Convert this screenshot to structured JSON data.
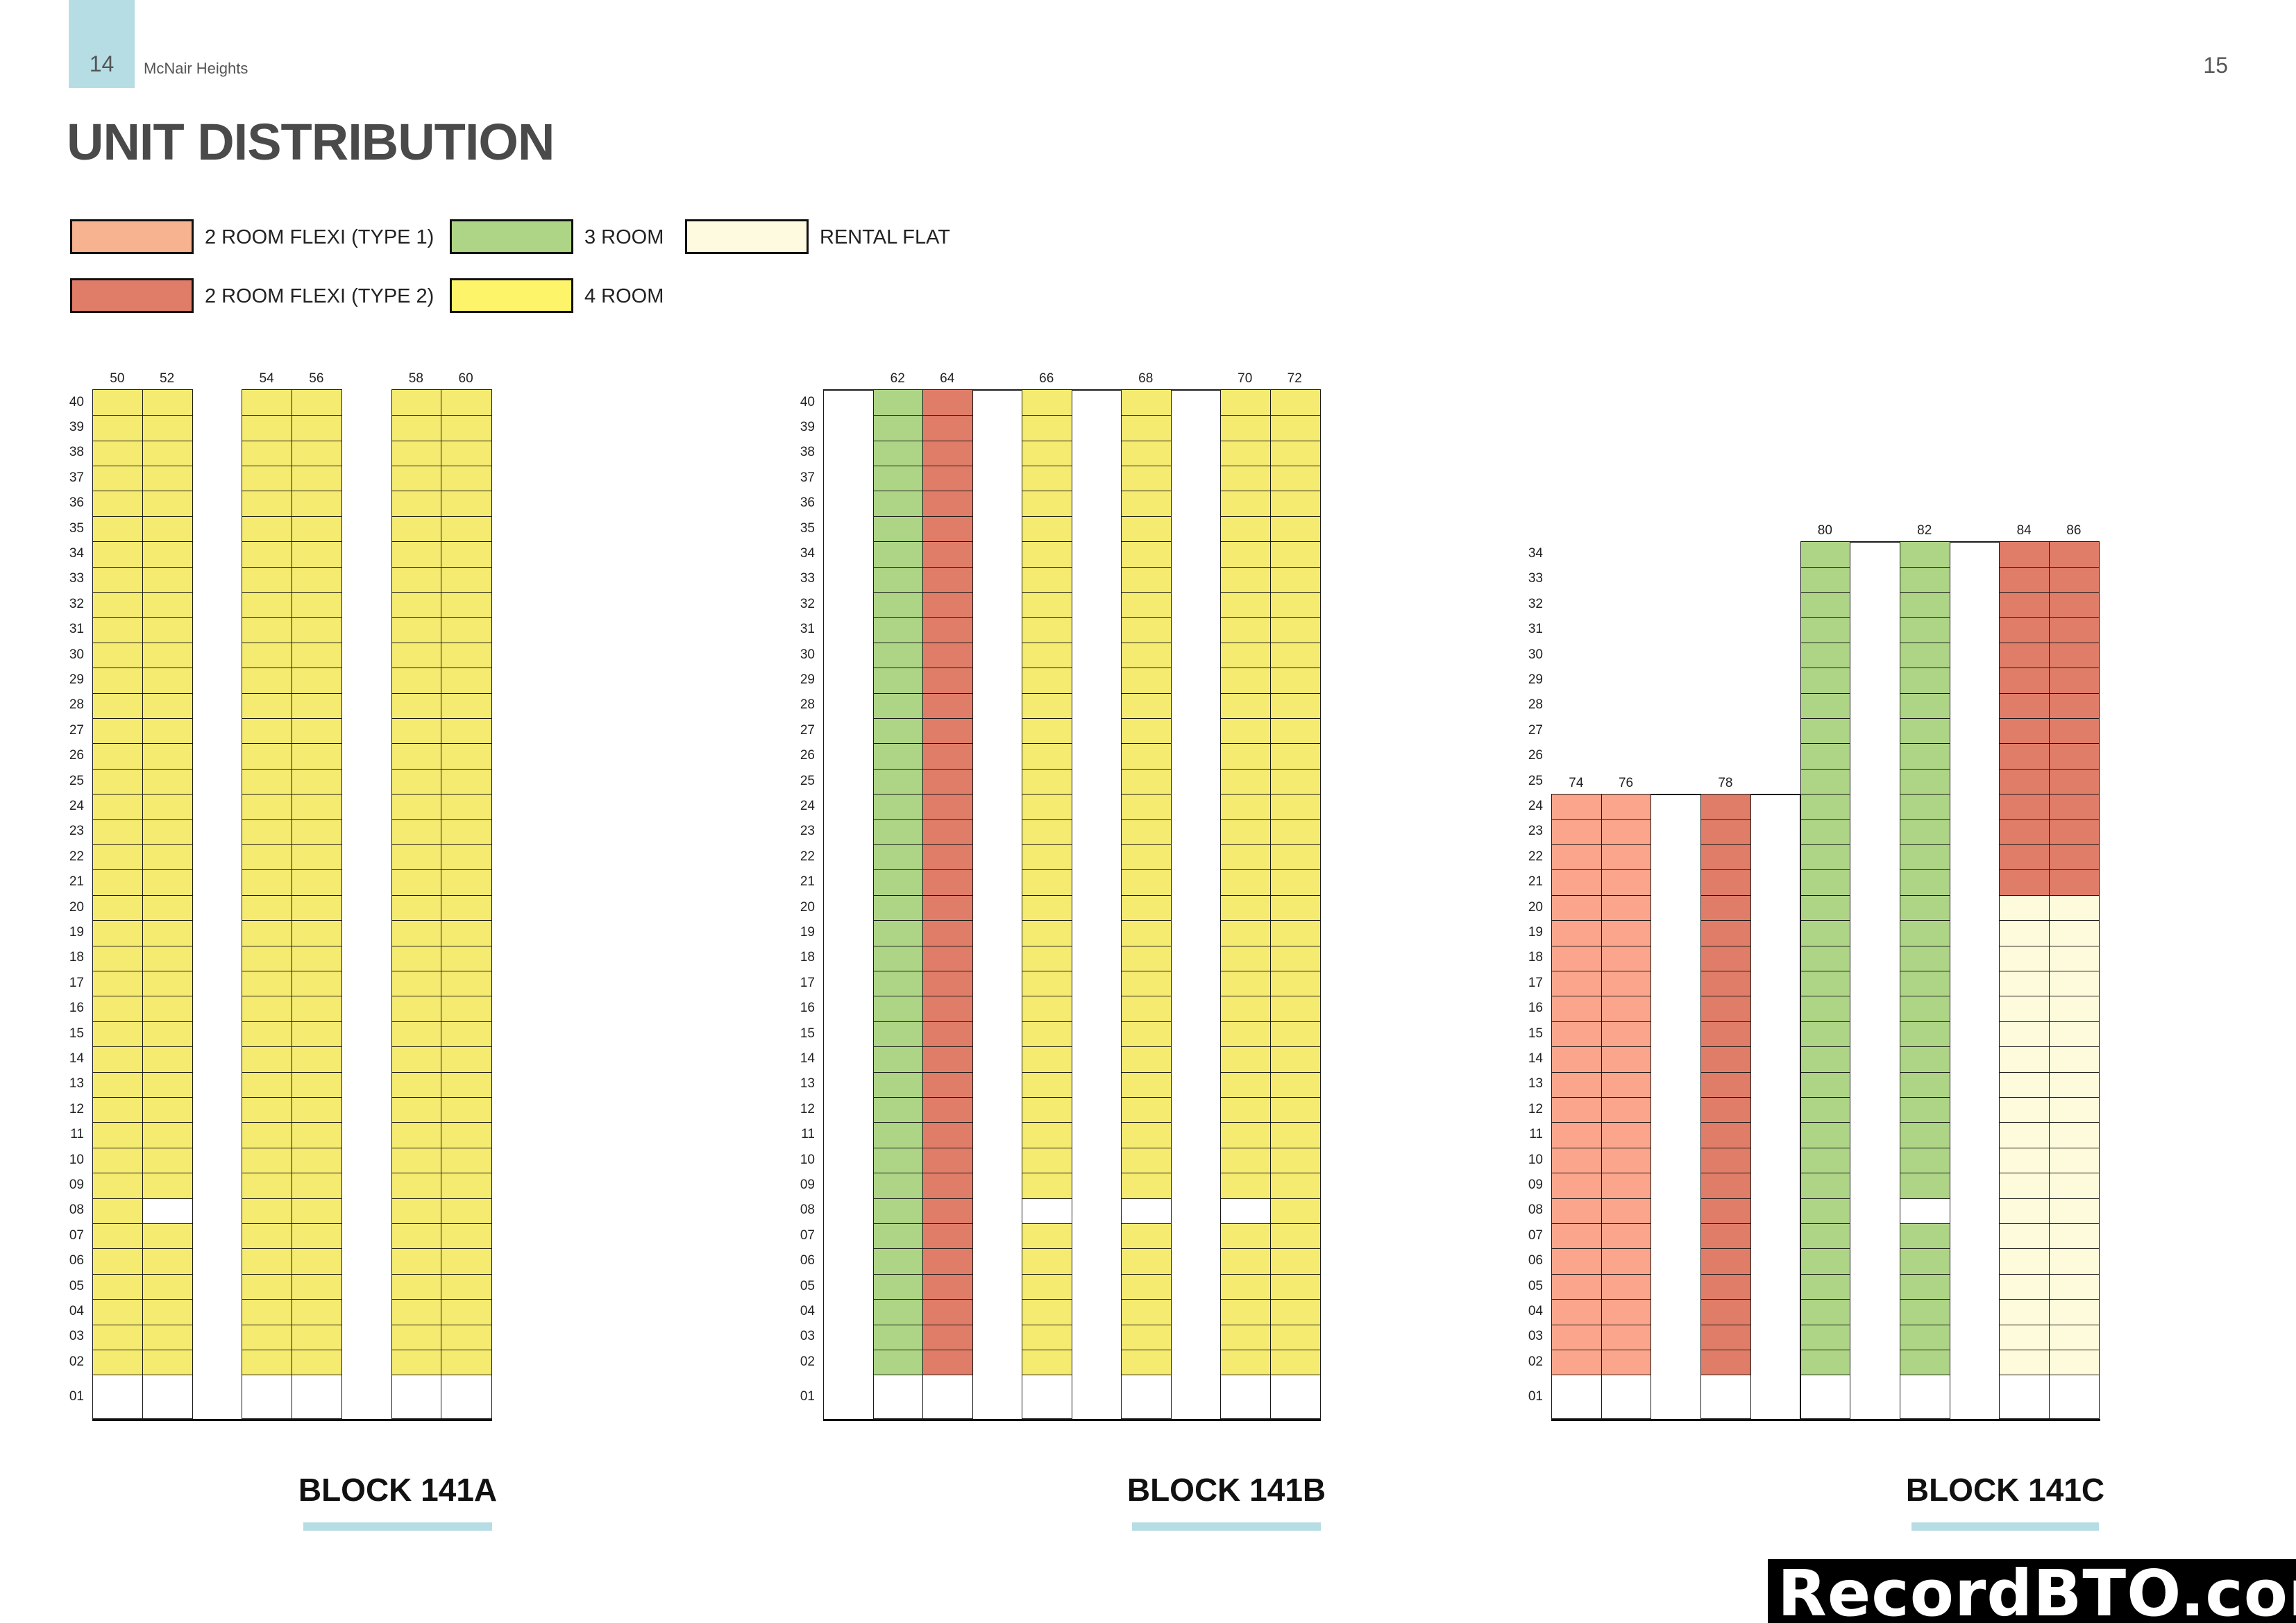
{
  "header": {
    "page_left": "14",
    "book_title": "McNair Heights",
    "page_right": "15",
    "title": "UNIT DISTRIBUTION"
  },
  "legend": [
    {
      "key": "flexi1",
      "label": "2  ROOM FLEXI (TYPE 1)",
      "color": "#F7B390",
      "cell_color": "#FBA58C"
    },
    {
      "key": "flexi2",
      "label": "2  ROOM FLEXI (TYPE 2)",
      "color": "#E07D69",
      "cell_color": "#E07D69"
    },
    {
      "key": "room3",
      "label": "3 ROOM",
      "color": "#AED585",
      "cell_color": "#AED585"
    },
    {
      "key": "room4",
      "label": "4 ROOM",
      "color": "#FEF46A",
      "cell_color": "#F5EB70"
    },
    {
      "key": "rental",
      "label": "RENTAL FLAT",
      "color": "#FEFADF",
      "cell_color": "#FEFADC"
    }
  ],
  "blocks": [
    {
      "name": "BLOCK 141A",
      "top_floor": 40,
      "columns": [
        {
          "unit": "50",
          "segments": [
            {
              "type": "room4",
              "from": 2,
              "to": 40
            }
          ]
        },
        {
          "unit": "52",
          "segments": [
            {
              "type": "room4",
              "from": 2,
              "to": 40
            }
          ],
          "void_floors": [
            8
          ]
        },
        {
          "gap": true,
          "top_floor": 40
        },
        {
          "unit": "54",
          "segments": [
            {
              "type": "room4",
              "from": 2,
              "to": 40
            }
          ]
        },
        {
          "unit": "56",
          "segments": [
            {
              "type": "room4",
              "from": 2,
              "to": 40
            }
          ]
        },
        {
          "gap": true,
          "top_floor": 40
        },
        {
          "unit": "58",
          "segments": [
            {
              "type": "room4",
              "from": 2,
              "to": 40
            }
          ]
        },
        {
          "unit": "60",
          "segments": [
            {
              "type": "room4",
              "from": 2,
              "to": 40
            }
          ]
        }
      ]
    },
    {
      "name": "BLOCK 141B",
      "top_floor": 40,
      "columns": [
        {
          "gap": true,
          "top_floor": 40
        },
        {
          "unit": "62",
          "segments": [
            {
              "type": "room3",
              "from": 2,
              "to": 40
            }
          ]
        },
        {
          "unit": "64",
          "segments": [
            {
              "type": "flexi2",
              "from": 2,
              "to": 40
            }
          ]
        },
        {
          "gap": true,
          "top_floor": 40
        },
        {
          "unit": "66",
          "segments": [
            {
              "type": "room4",
              "from": 2,
              "to": 40
            }
          ],
          "void_floors": [
            8
          ]
        },
        {
          "gap": true,
          "top_floor": 40
        },
        {
          "unit": "68",
          "segments": [
            {
              "type": "room4",
              "from": 2,
              "to": 40
            }
          ],
          "void_floors": [
            8
          ]
        },
        {
          "gap": true,
          "top_floor": 40
        },
        {
          "unit": "70",
          "segments": [
            {
              "type": "room4",
              "from": 2,
              "to": 40
            }
          ],
          "void_floors": [
            8
          ]
        },
        {
          "unit": "72",
          "segments": [
            {
              "type": "room4",
              "from": 2,
              "to": 40
            }
          ]
        }
      ]
    },
    {
      "name": "BLOCK 141C",
      "top_floor": 34,
      "columns": [
        {
          "unit": "74",
          "segments": [
            {
              "type": "flexi1",
              "from": 2,
              "to": 24
            }
          ]
        },
        {
          "unit": "76",
          "segments": [
            {
              "type": "flexi1",
              "from": 2,
              "to": 24
            }
          ]
        },
        {
          "gap": true,
          "top_floor": 24
        },
        {
          "unit": "78",
          "segments": [
            {
              "type": "flexi2",
              "from": 2,
              "to": 24
            }
          ]
        },
        {
          "gap": true,
          "top_floor": 24
        },
        {
          "unit": "80",
          "segments": [
            {
              "type": "room3",
              "from": 2,
              "to": 34
            }
          ]
        },
        {
          "gap": true,
          "top_floor": 34
        },
        {
          "unit": "82",
          "segments": [
            {
              "type": "room3",
              "from": 2,
              "to": 34
            }
          ],
          "void_floors": [
            8
          ]
        },
        {
          "gap": true,
          "top_floor": 34
        },
        {
          "unit": "84",
          "segments": [
            {
              "type": "rental",
              "from": 2,
              "to": 20
            },
            {
              "type": "flexi2",
              "from": 21,
              "to": 34
            }
          ]
        },
        {
          "unit": "86",
          "segments": [
            {
              "type": "rental",
              "from": 2,
              "to": 20
            },
            {
              "type": "flexi2",
              "from": 21,
              "to": 34
            }
          ]
        }
      ]
    }
  ],
  "floor_labels": {
    "A": [
      "40",
      "39",
      "38",
      "37",
      "36",
      "35",
      "34",
      "33",
      "32",
      "31",
      "30",
      "29",
      "28",
      "27",
      "26",
      "25",
      "24",
      "23",
      "22",
      "21",
      "20",
      "19",
      "18",
      "17",
      "16",
      "15",
      "14",
      "13",
      "12",
      "11",
      "10",
      "09",
      "08",
      "07",
      "06",
      "05",
      "04",
      "03",
      "02",
      "01"
    ],
    "B": [
      "40",
      "39",
      "38",
      "37",
      "36",
      "35",
      "34",
      "33",
      "32",
      "31",
      "30",
      "29",
      "28",
      "27",
      "26",
      "25",
      "24",
      "23",
      "22",
      "21",
      "20",
      "19",
      "18",
      "17",
      "16",
      "15",
      "14",
      "13",
      "12",
      "11",
      "10",
      "09",
      "08",
      "07",
      "06",
      "05",
      "04",
      "03",
      "02",
      "01"
    ],
    "C": [
      "34",
      "33",
      "32",
      "31",
      "30",
      "29",
      "28",
      "27",
      "26",
      "25",
      "24",
      "23",
      "22",
      "21",
      "20",
      "19",
      "18",
      "17",
      "16",
      "15",
      "14",
      "13",
      "12",
      "11",
      "10",
      "09",
      "08",
      "07",
      "06",
      "05",
      "04",
      "03",
      "02",
      "01"
    ]
  },
  "watermark": "RecordBTO.com"
}
